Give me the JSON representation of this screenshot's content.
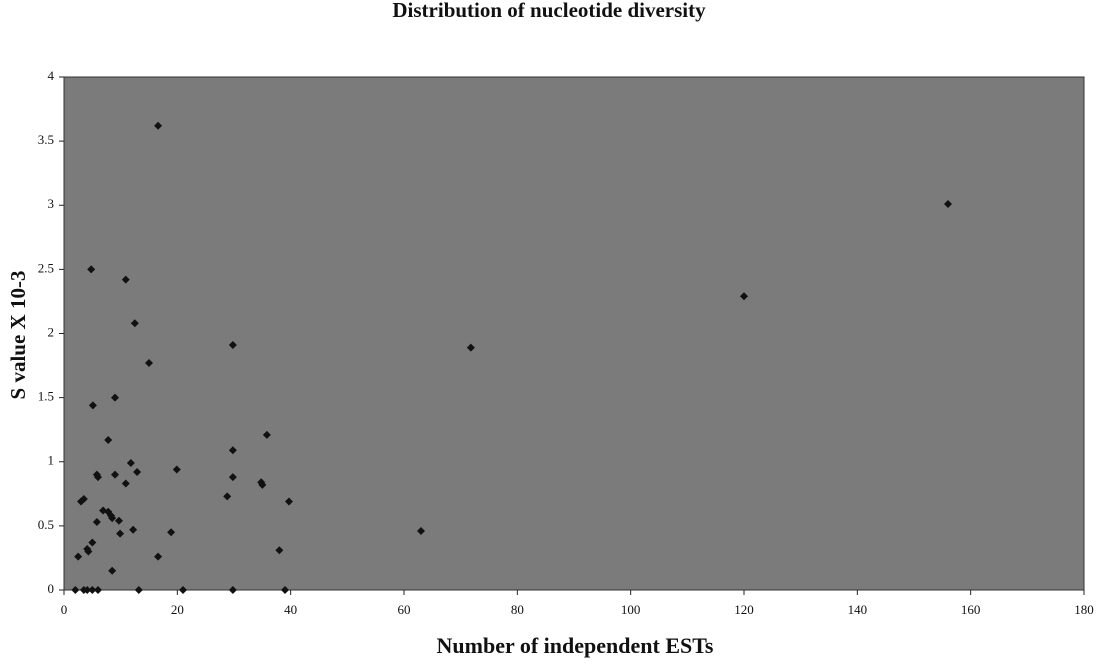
{
  "chart_data": {
    "type": "scatter",
    "title": "Distribution of nucleotide diversity",
    "x_label": "Number of independent ESTs",
    "y_label": "S  value X 10-3",
    "x": [
      16.6,
      156,
      120,
      71.8,
      63,
      4.8,
      10.9,
      12.5,
      15,
      29.8,
      9,
      5.1,
      35.8,
      7.8,
      29.8,
      11.8,
      19.9,
      12.9,
      5.8,
      6,
      9,
      29.8,
      34.8,
      35,
      10.9,
      28.8,
      39.7,
      3.5,
      3,
      6.9,
      7.8,
      8.3,
      8.5,
      9.7,
      5.8,
      12.2,
      9.9,
      18.9,
      5,
      4.1,
      4.3,
      38,
      2.5,
      16.6,
      8.5,
      2,
      3.5,
      4.1,
      5,
      6,
      13.2,
      21,
      29.8,
      39
    ],
    "y": [
      3.62,
      3.01,
      2.29,
      1.89,
      0.46,
      2.5,
      2.42,
      2.08,
      1.77,
      1.91,
      1.5,
      1.44,
      1.21,
      1.17,
      1.09,
      0.99,
      0.94,
      0.92,
      0.9,
      0.88,
      0.9,
      0.88,
      0.84,
      0.82,
      0.83,
      0.73,
      0.69,
      0.71,
      0.69,
      0.62,
      0.61,
      0.58,
      0.56,
      0.54,
      0.53,
      0.47,
      0.44,
      0.45,
      0.37,
      0.32,
      0.3,
      0.31,
      0.26,
      0.26,
      0.15,
      0,
      0,
      0,
      0,
      0,
      0,
      0,
      0,
      0
    ],
    "color": "#111111",
    "plot_background": "#7b7b7b",
    "xlim": [
      0,
      180
    ],
    "xticks": [
      0,
      20,
      40,
      60,
      80,
      100,
      120,
      140,
      160,
      180
    ],
    "ylim": [
      0,
      4
    ],
    "yticks": [
      0,
      0.5,
      1,
      1.5,
      2,
      2.5,
      3,
      3.5,
      4
    ],
    "grid": false
  }
}
